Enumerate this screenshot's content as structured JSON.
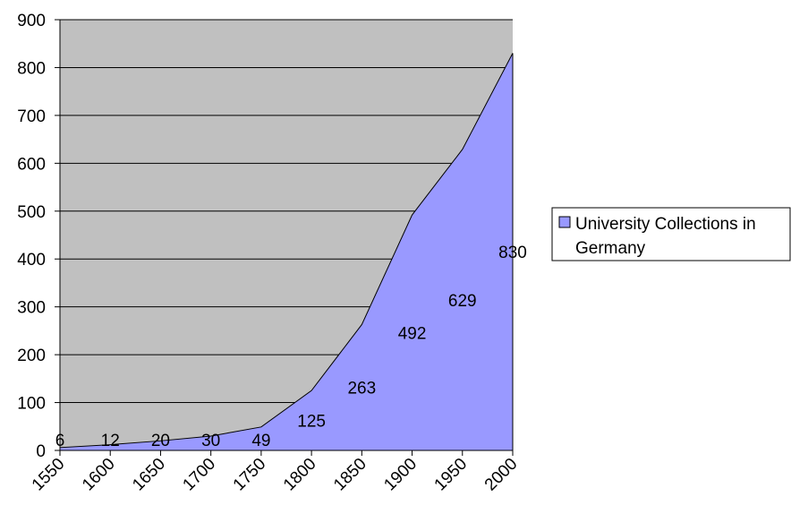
{
  "chart_data": {
    "type": "area",
    "x": [
      1550,
      1600,
      1650,
      1700,
      1750,
      1800,
      1850,
      1900,
      1950,
      2000
    ],
    "series": [
      {
        "name": "University Collections in Germany",
        "values": [
          6,
          12,
          20,
          30,
          49,
          125,
          263,
          492,
          629,
          830
        ],
        "color": "#9999ff"
      }
    ],
    "ylim": [
      0,
      900
    ],
    "yticks": [
      0,
      100,
      200,
      300,
      400,
      500,
      600,
      700,
      800,
      900
    ],
    "xticks": [
      "1550",
      "1600",
      "1650",
      "1700",
      "1750",
      "1800",
      "1850",
      "1900",
      "1950",
      "2000"
    ],
    "data_labels": [
      "6",
      "12",
      "20",
      "30",
      "49",
      "125",
      "263",
      "492",
      "629",
      "830"
    ],
    "plot_background": "#c0c0c0",
    "grid": true,
    "legend": {
      "position": "right",
      "lines": [
        "University Collections in",
        "Germany"
      ]
    }
  }
}
